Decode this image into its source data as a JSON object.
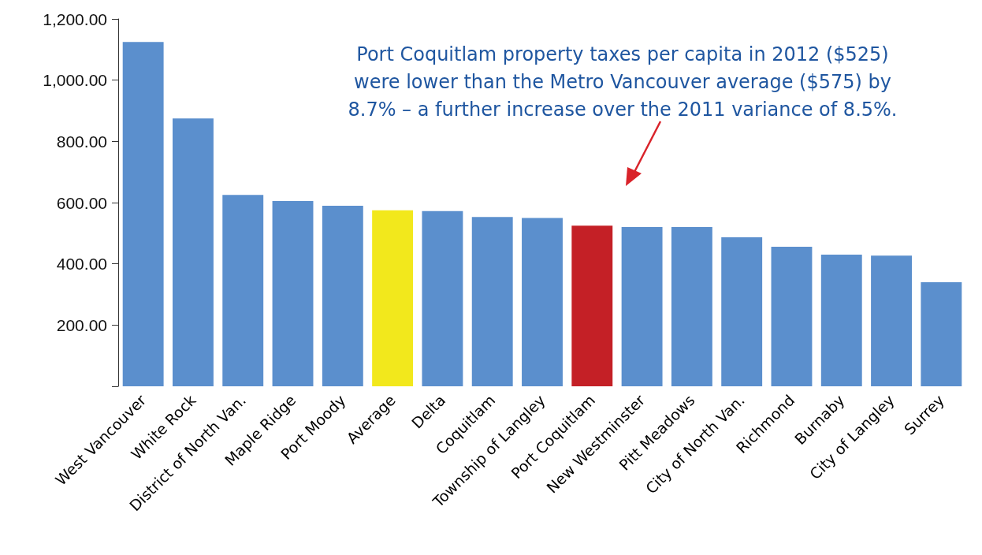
{
  "chart_data": {
    "type": "bar",
    "categories": [
      "West Vancouver",
      "White Rock",
      "District of North Van.",
      "Maple Ridge",
      "Port Moody",
      "Average",
      "Delta",
      "Coquitlam",
      "Township of Langley",
      "Port Coquitlam",
      "New Westminster",
      "Pitt Meadows",
      "City of North Van.",
      "Richmond",
      "Burnaby",
      "City of Langley",
      "Surrey"
    ],
    "values": [
      1125,
      875,
      625,
      605,
      590,
      575,
      572,
      553,
      550,
      525,
      520,
      520,
      487,
      456,
      430,
      427,
      340
    ],
    "colors": [
      "#5b8fcd",
      "#5b8fcd",
      "#5b8fcd",
      "#5b8fcd",
      "#5b8fcd",
      "#f2e81c",
      "#5b8fcd",
      "#5b8fcd",
      "#5b8fcd",
      "#c42026",
      "#5b8fcd",
      "#5b8fcd",
      "#5b8fcd",
      "#5b8fcd",
      "#5b8fcd",
      "#5b8fcd",
      "#5b8fcd"
    ],
    "ylim": [
      0,
      1200
    ],
    "yticks": [
      {
        "value": 0,
        "label": null
      },
      {
        "value": 200,
        "label": "200.00"
      },
      {
        "value": 400,
        "label": "400.00"
      },
      {
        "value": 600,
        "label": "600.00"
      },
      {
        "value": 800,
        "label": "800.00"
      },
      {
        "value": 1000,
        "label": "1,000.00"
      },
      {
        "value": 1200,
        "label": "1,200.00"
      }
    ],
    "grid": false,
    "annotations": [
      "Port Coquitlam property taxes per capita in 2012 ($525) were lower than the Metro Vancouver average ($575) by 8.7% – a further increase over the 2011 variance of 8.5%."
    ]
  }
}
